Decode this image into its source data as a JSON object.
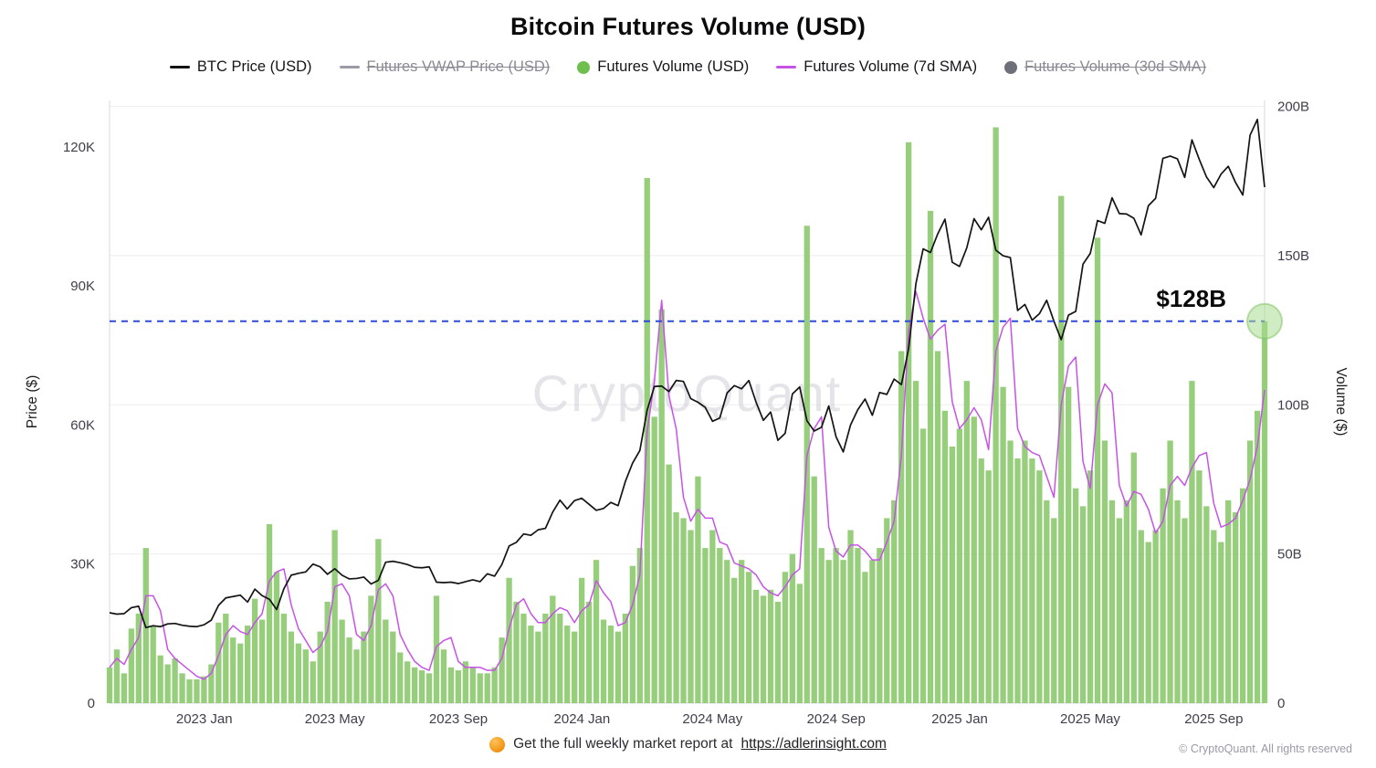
{
  "page": {
    "title": "Bitcoin Futures Volume (USD)"
  },
  "legend": [
    {
      "label": "BTC Price (USD)",
      "swatch": "line",
      "color": "#141414",
      "disabled": false
    },
    {
      "label": "Futures VWAP Price (USD)",
      "swatch": "line",
      "color": "#9b9ba6",
      "disabled": true
    },
    {
      "label": "Futures Volume (USD)",
      "swatch": "dot",
      "color": "#6fbf4f",
      "disabled": false
    },
    {
      "label": "Futures Volume (7d SMA)",
      "swatch": "line",
      "color": "#c653e6",
      "disabled": false
    },
    {
      "label": "Futures Volume (30d SMA)",
      "swatch": "dot",
      "color": "#6f6f7a",
      "disabled": true
    }
  ],
  "watermark": "CryptoQuant",
  "footer": {
    "bullet": "orange-circle-icon",
    "text": "Get the full weekly market report at",
    "link": "https://adlerinsight.com",
    "copyright": "© CryptoQuant. All rights reserved"
  },
  "chart_data": {
    "type": "bar",
    "subtype": "combo bar+line, dual axis",
    "title": "Bitcoin Futures Volume (USD)",
    "x_unit": "weekly samples (approximated from daily data), Oct 2022 – Oct 2025",
    "x_ticks": [
      {
        "label": "2023 Jan",
        "f": 0.082
      },
      {
        "label": "2023 May",
        "f": 0.195
      },
      {
        "label": "2023 Sep",
        "f": 0.302
      },
      {
        "label": "2024 Jan",
        "f": 0.409
      },
      {
        "label": "2024 May",
        "f": 0.522
      },
      {
        "label": "2024 Sep",
        "f": 0.629
      },
      {
        "label": "2025 Jan",
        "f": 0.736
      },
      {
        "label": "2025 May",
        "f": 0.849
      },
      {
        "label": "2025 Sep",
        "f": 0.956
      }
    ],
    "price_axis": {
      "label": "Price ($)",
      "unit": "thousand USD",
      "max": 130,
      "ticks": [
        {
          "v": 0,
          "label": "0"
        },
        {
          "v": 30,
          "label": "30K"
        },
        {
          "v": 60,
          "label": "60K"
        },
        {
          "v": 90,
          "label": "90K"
        },
        {
          "v": 120,
          "label": "120K"
        }
      ]
    },
    "volume_axis": {
      "label": "Volume ($)",
      "unit": "billion USD",
      "max": 202,
      "ticks": [
        {
          "v": 0,
          "label": "0"
        },
        {
          "v": 50,
          "label": "50B"
        },
        {
          "v": 100,
          "label": "100B"
        },
        {
          "v": 150,
          "label": "150B"
        },
        {
          "v": 200,
          "label": "200B"
        }
      ]
    },
    "style": {
      "bar_color": "#8bc96d",
      "price_color": "#141414",
      "sma_color": "#c653e6",
      "grid_color": "#ededf2",
      "border_color": "#d9d9e2",
      "annotation_color": "#2e4bdb"
    },
    "btc_price_k": [
      19.5,
      19.2,
      19.3,
      20.6,
      20.9,
      16.3,
      16.7,
      16.5,
      17.1,
      17.2,
      16.8,
      16.6,
      16.5,
      16.9,
      17.9,
      21.1,
      22.7,
      23.0,
      23.3,
      21.8,
      24.6,
      23.2,
      22.4,
      20.2,
      24.7,
      27.6,
      28.0,
      28.3,
      30.0,
      29.4,
      27.8,
      29.0,
      27.6,
      26.8,
      26.9,
      27.2,
      25.7,
      26.5,
      30.4,
      30.6,
      30.3,
      29.9,
      29.3,
      29.2,
      29.4,
      26.1,
      26.0,
      26.1,
      25.8,
      26.2,
      26.6,
      26.2,
      27.9,
      27.4,
      29.9,
      33.9,
      34.7,
      36.5,
      36.2,
      37.4,
      37.7,
      41.2,
      43.8,
      41.9,
      43.7,
      44.2,
      42.9,
      41.6,
      42.0,
      43.3,
      42.6,
      47.8,
      51.8,
      54.5,
      63.2,
      68.3,
      68.4,
      67.2,
      69.6,
      69.4,
      65.7,
      64.9,
      63.8,
      60.8,
      61.5,
      66.9,
      68.5,
      67.8,
      69.6,
      64.9,
      61.0,
      62.8,
      56.7,
      58.2,
      66.7,
      68.2,
      60.9,
      58.7,
      59.5,
      64.1,
      57.5,
      54.2,
      60.0,
      63.3,
      65.6,
      62.1,
      67.0,
      66.6,
      69.9,
      68.7,
      76.5,
      90.5,
      98.0,
      97.2,
      101.2,
      104.4,
      95.1,
      94.2,
      98.2,
      104.5,
      102.1,
      104.8,
      97.7,
      96.5,
      96.1,
      84.7,
      86.0,
      82.6,
      84.0,
      86.9,
      82.4,
      78.4,
      83.7,
      84.5,
      94.7,
      97.0,
      104.1,
      103.5,
      109.0,
      105.6,
      105.5,
      104.6,
      101.0,
      107.3,
      108.9,
      117.5,
      118.0,
      117.4,
      113.4,
      121.5,
      117.3,
      113.5,
      111.2,
      114.1,
      115.8,
      112.3,
      109.6,
      122.5,
      125.9,
      111.3
    ],
    "futures_volume_b": [
      12,
      18,
      10,
      25,
      30,
      52,
      26,
      16,
      13,
      15,
      10,
      8,
      8,
      9,
      13,
      27,
      30,
      22,
      20,
      26,
      35,
      28,
      60,
      44,
      30,
      24,
      20,
      18,
      14,
      24,
      34,
      58,
      28,
      22,
      18,
      24,
      36,
      55,
      28,
      24,
      17,
      14,
      12,
      11,
      10,
      36,
      18,
      12,
      11,
      14,
      12,
      10,
      10,
      12,
      22,
      42,
      34,
      30,
      26,
      24,
      30,
      36,
      30,
      26,
      24,
      42,
      34,
      48,
      28,
      26,
      24,
      30,
      46,
      52,
      176,
      96,
      132,
      80,
      64,
      62,
      58,
      76,
      52,
      58,
      52,
      48,
      42,
      48,
      44,
      38,
      36,
      38,
      34,
      44,
      50,
      40,
      160,
      76,
      52,
      48,
      52,
      48,
      58,
      52,
      44,
      48,
      52,
      62,
      68,
      118,
      188,
      108,
      92,
      165,
      118,
      98,
      86,
      92,
      108,
      96,
      82,
      78,
      193,
      106,
      88,
      82,
      88,
      82,
      78,
      68,
      62,
      170,
      106,
      72,
      66,
      78,
      156,
      88,
      68,
      62,
      68,
      84,
      58,
      54,
      58,
      72,
      88,
      68,
      62,
      108,
      78,
      66,
      58,
      54,
      68,
      64,
      72,
      88,
      98,
      128
    ],
    "futures_volume_7d_sma_b": [
      12,
      15,
      13,
      18,
      22,
      36,
      36,
      31,
      18,
      15,
      13,
      11,
      9,
      8,
      10,
      16,
      23,
      26,
      24,
      23,
      27,
      30,
      41,
      44,
      45,
      33,
      25,
      21,
      17,
      19,
      24,
      39,
      40,
      36,
      23,
      21,
      26,
      38,
      40,
      36,
      23,
      18,
      14,
      12,
      11,
      19,
      21,
      22,
      14,
      12,
      12,
      12,
      11,
      11,
      15,
      25,
      33,
      35,
      30,
      27,
      27,
      30,
      32,
      31,
      27,
      31,
      33,
      41,
      37,
      34,
      26,
      27,
      33,
      43,
      91,
      108,
      135,
      103,
      92,
      69,
      61,
      65,
      62,
      62,
      54,
      53,
      47,
      46,
      45,
      43,
      39,
      37,
      36,
      39,
      43,
      45,
      83,
      92,
      96,
      59,
      51,
      49,
      53,
      53,
      51,
      48,
      48,
      54,
      61,
      83,
      125,
      138,
      129,
      122,
      125,
      127,
      101,
      92,
      95,
      99,
      95,
      85,
      118,
      126,
      129,
      92,
      86,
      84,
      83,
      76,
      69,
      100,
      113,
      116,
      81,
      72,
      100,
      107,
      104,
      73,
      66,
      71,
      70,
      65,
      57,
      61,
      73,
      76,
      73,
      79,
      83,
      84,
      67,
      59,
      60,
      62,
      68,
      75,
      86,
      105
    ],
    "annotation": {
      "label": "$128B",
      "volume_b": 128
    },
    "endpoint_highlight": {
      "volume_b": 128
    }
  }
}
